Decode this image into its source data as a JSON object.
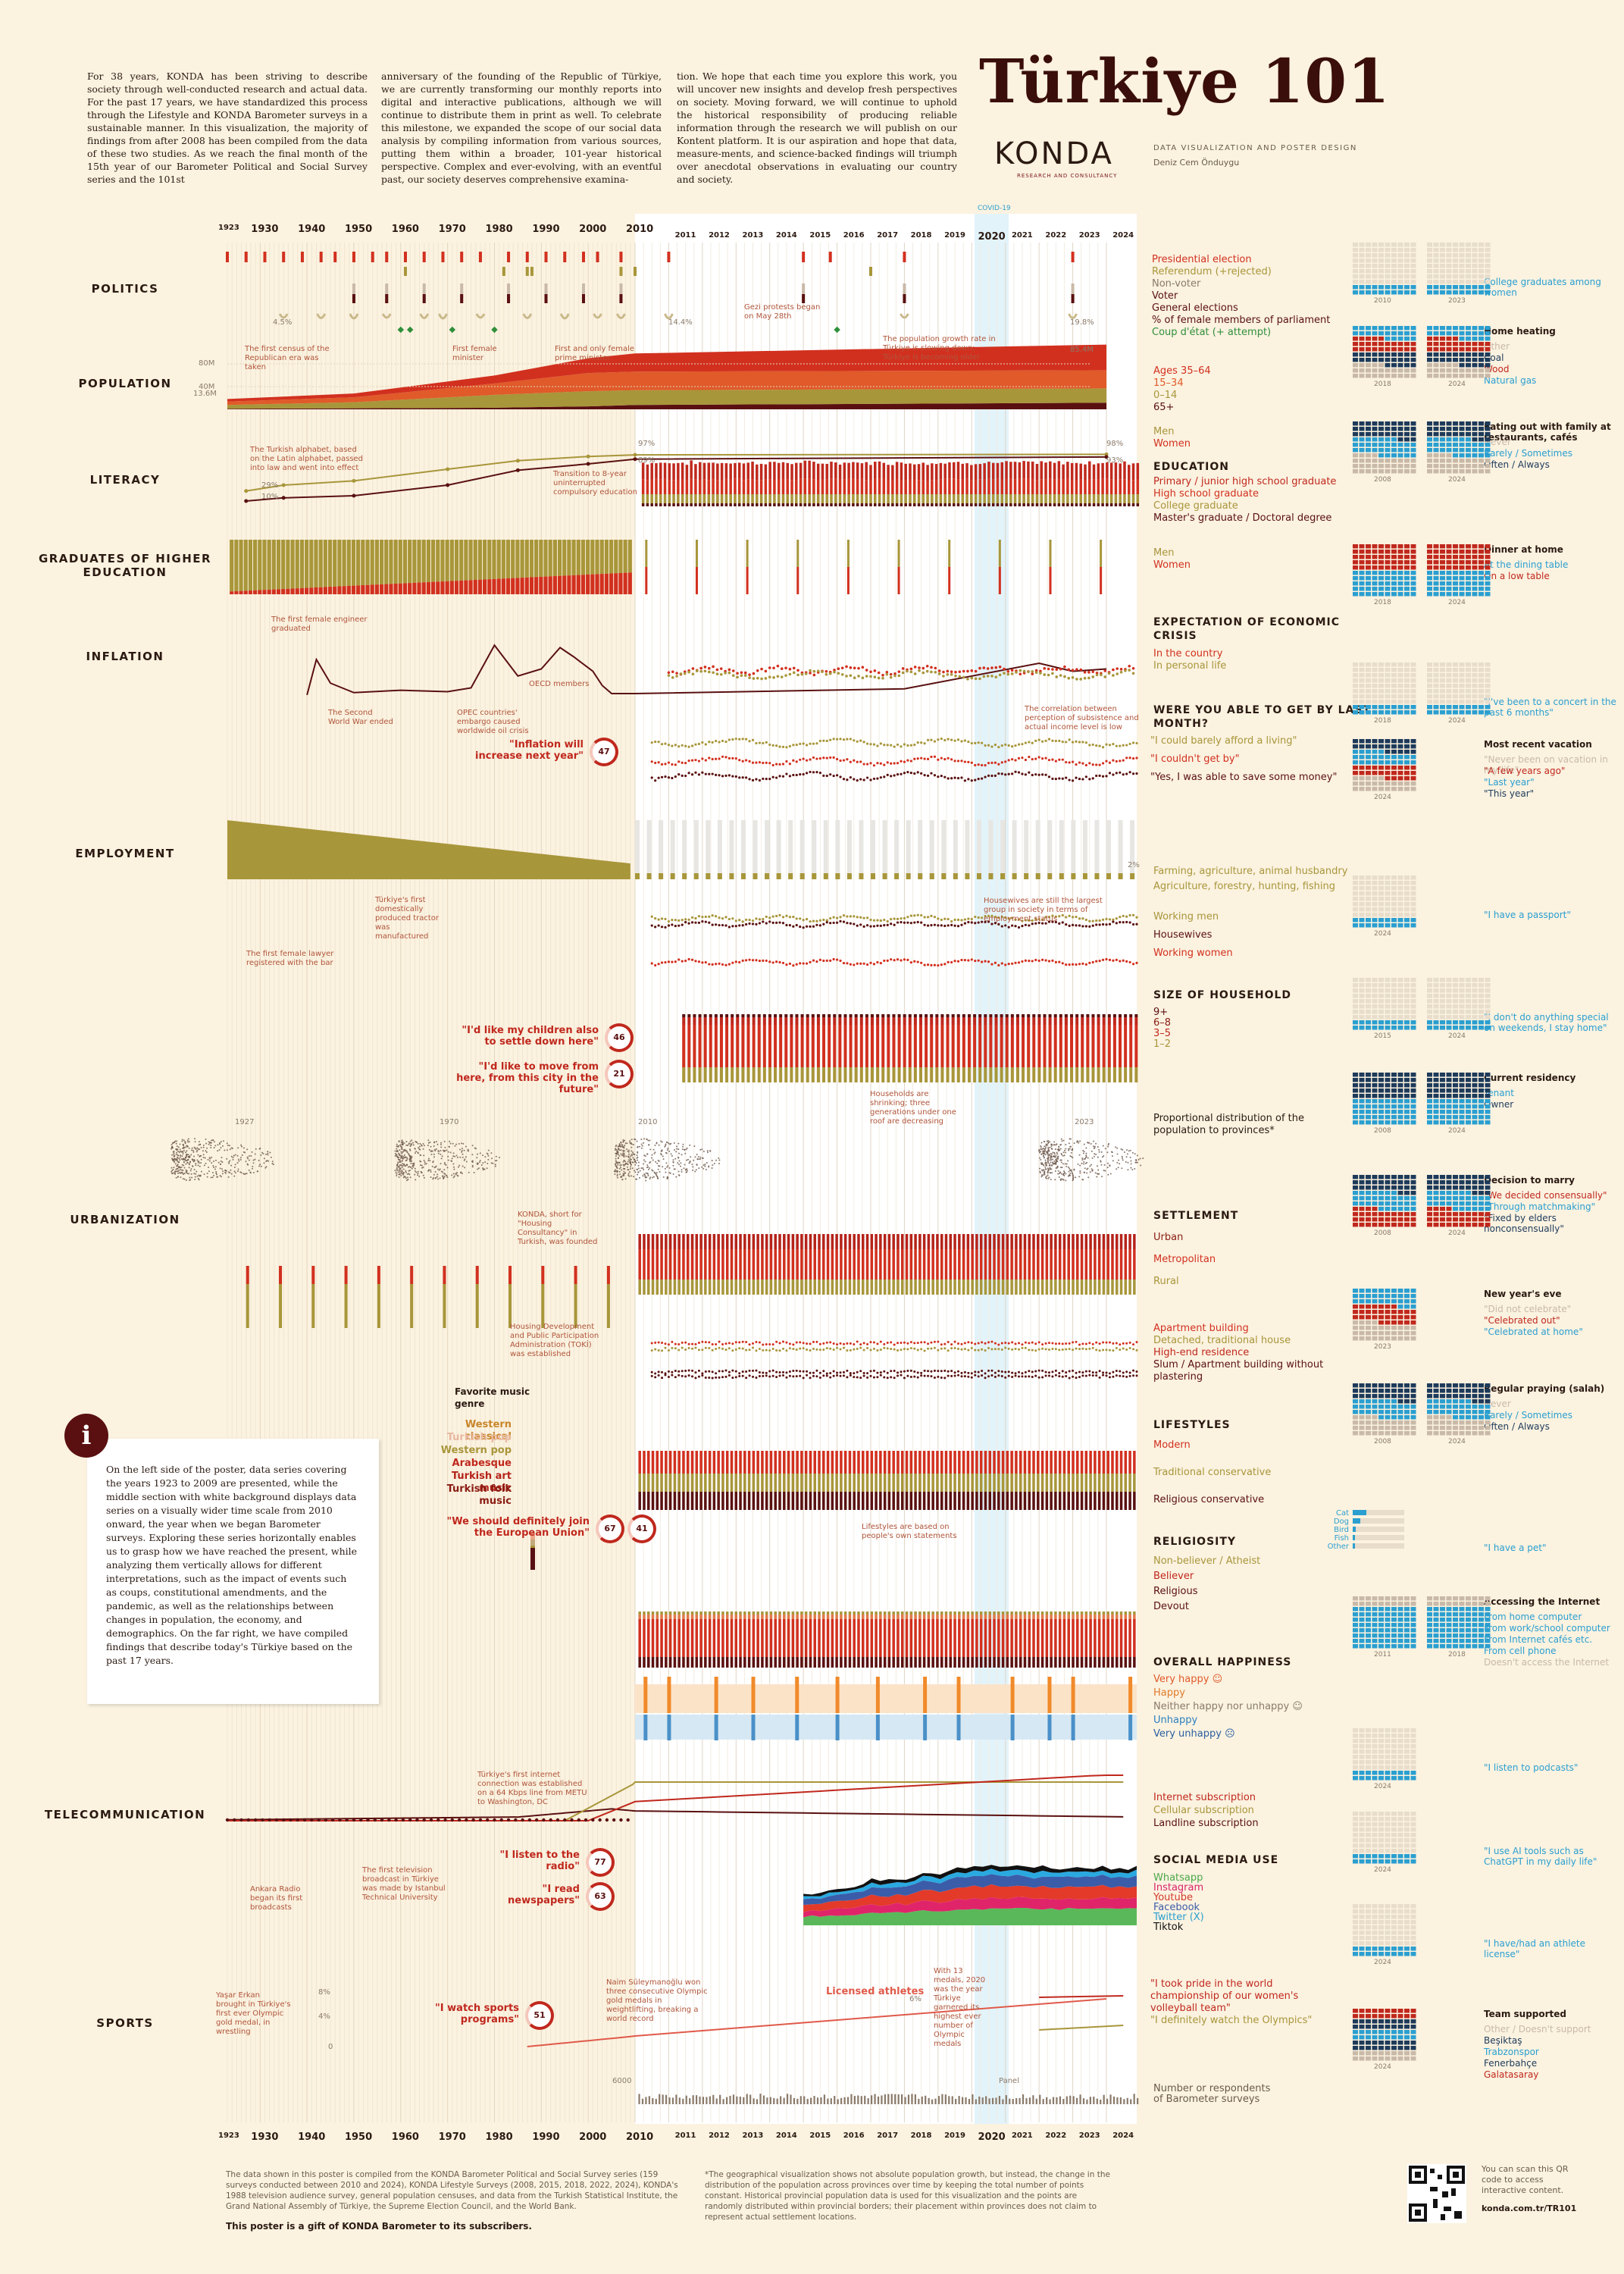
{
  "intro": {
    "col1": "For 38 years, KONDA has been striving to describe society through well-conducted research and actual data. For the past 17 years, we have standardized this process through the Lifestyle and KONDA Barometer surveys in a sustainable manner. In this visualization, the majority of findings from after 2008 has been compiled from the data of these two studies. As we reach the final month of the 15th year of our Barometer Political and Social Survey series and the 101st",
    "col2": "anniversary of the founding of the Republic of Türkiye, we are currently transforming our monthly reports into digital and interactive publications, although we will continue to distribute them in print as well. To celebrate this milestone, we expanded the scope of our social data analysis by compiling information from various sources, putting them within a broader, 101-year historical perspective. Complex and ever-evolving, with an eventful past, our society deserves comprehensive examina-",
    "col3": "tion. We hope that each time you explore this work, you will uncover new insights and develop fresh perspectives on society. Moving forward, we will continue to uphold the historical responsibility of producing reliable information through the research we will publish on our Kontent platform. It is our aspiration and hope that data, measure-ments, and science-backed findings will triumph over anecdotal observations in evaluating our country and society."
  },
  "header": {
    "title": "Türkiye 101",
    "brand": "KONDA",
    "brand_sub": "RESEARCH AND CONSULTANCY",
    "credit_line": "DATA VISUALIZATION AND POSTER DESIGN",
    "designer": "Deniz Cem Önduygu"
  },
  "colors": {
    "bg": "#fbf2e0",
    "red": "#d2301f",
    "orange": "#e05a2a",
    "olive": "#a8963a",
    "maroon": "#5a1010",
    "blue": "#2a9fd0",
    "navy": "#1d3a5a"
  },
  "timeline": {
    "early_years": [
      "1923",
      "1930",
      "1940",
      "1950",
      "1960",
      "1970",
      "1980",
      "1990",
      "2000",
      "2010"
    ],
    "recent_years": [
      "2011",
      "2012",
      "2013",
      "2014",
      "2015",
      "2016",
      "2017",
      "2018",
      "2019",
      "2020",
      "2021",
      "2022",
      "2023",
      "2024"
    ],
    "covid_label": "COVID-19"
  },
  "sections": [
    {
      "key": "politics",
      "label": "POLITICS"
    },
    {
      "key": "population",
      "label": "POPULATION"
    },
    {
      "key": "literacy",
      "label": "LITERACY"
    },
    {
      "key": "graduates",
      "label": "GRADUATES OF HIGHER EDUCATION"
    },
    {
      "key": "inflation",
      "label": "INFLATION"
    },
    {
      "key": "employment",
      "label": "EMPLOYMENT"
    },
    {
      "key": "urbanization",
      "label": "URBANIZATION"
    },
    {
      "key": "telecom",
      "label": "TELECOMMUNICATION"
    },
    {
      "key": "sports",
      "label": "SPORTS"
    }
  ],
  "legends": {
    "politics": [
      "Presidential election",
      "Referendum (+rejected)",
      "Non-voter",
      "Voter",
      "General elections",
      "% of female members of parliament",
      "Coup d'état (+ attempt)"
    ],
    "population": [
      "Ages 35–64",
      "15–34",
      "0–14",
      "65+"
    ],
    "literacy": [
      "Men",
      "Women"
    ],
    "education_h": "EDUCATION",
    "education": [
      "Primary / junior high school graduate",
      "High school graduate",
      "College graduate",
      "Master's graduate / Doctoral degree"
    ],
    "graduates": [
      "Men",
      "Women"
    ],
    "crisis_h": "EXPECTATION OF ECONOMIC CRISIS",
    "crisis": [
      "In the country",
      "In personal life"
    ],
    "getby_h": "WERE YOU ABLE TO GET BY LAST MONTH?",
    "getby": [
      "\"I could barely afford a living\"",
      "\"I couldn't get by\"",
      "\"Yes, I was able to save some money\""
    ],
    "employment": [
      "Farming, agriculture, animal husbandry",
      "Agriculture, forestry, hunting, fishing"
    ],
    "working": [
      "Working men",
      "Housewives",
      "Working women"
    ],
    "household_h": "SIZE OF HOUSEHOLD",
    "household": [
      "9+",
      "6–8",
      "3–5",
      "1–2"
    ],
    "provinces": "Proportional distribution of the population to provinces*",
    "settlement_h": "SETTLEMENT",
    "settlement": [
      "Urban",
      "Metropolitan",
      "Rural"
    ],
    "housing": [
      "Apartment building",
      "Detached, traditional house",
      "High-end residence",
      "Slum / Apartment building without plastering"
    ],
    "lifestyles_h": "LIFESTYLES",
    "lifestyles": [
      "Modern",
      "Traditional conservative",
      "Religious conservative"
    ],
    "religiosity_h": "RELIGIOSITY",
    "religiosity": [
      "Non-believer / Atheist",
      "Believer",
      "Religious",
      "Devout"
    ],
    "happiness_h": "OVERALL HAPPINESS",
    "happiness": [
      "Very happy ☺",
      "Happy",
      "Neither happy nor unhappy ☺",
      "Unhappy",
      "Very unhappy ☹"
    ],
    "telecom": [
      "Internet subscription",
      "Cellular subscription",
      "Landline subscription"
    ],
    "social_h": "SOCIAL MEDIA USE",
    "social": [
      "Whatsapp",
      "Instagram",
      "Youtube",
      "Facebook",
      "Twitter (X)",
      "Tiktok"
    ],
    "sports": [
      "\"I took pride in the world championship of our women's volleyball team\"",
      "\"I definitely watch the Olympics\""
    ],
    "respondents": [
      "Number or respondents",
      "of Barometer surveys"
    ],
    "music_h": "Favorite music genre",
    "music": [
      "Western classical",
      "Turkish pop",
      "Western pop",
      "Arabesque",
      "Turkish art music",
      "Turkish folk music"
    ]
  },
  "notes": {
    "census": "The first census of the Republican era was taken",
    "fem_min": "First female minister",
    "fem_pm": "First and only female prime minister",
    "gezi": "Gezi protests began on May 28th",
    "pop_slow": "The population growth rate in Türkiye is slowing down; Türkiye is becoming older",
    "alphabet": "The Turkish alphabet, based on the Latin alphabet, passed into law and went into effect",
    "compulsory": "Transition to 8-year uninterrupted compulsory education",
    "engineer": "The first female engineer graduated",
    "ww2": "The Second World War ended",
    "opec": "OPEC countries' embargo caused worldwide oil crisis",
    "oecd": "OECD members",
    "correlation": "The correlation between perception of subsistence and actual income level is low",
    "tractor": "Türkiye's first domestically produced tractor was manufactured",
    "lawyer": "The first female lawyer registered with the bar",
    "housewives": "Housewives are still the largest group in society in terms of employment status",
    "shrinking": "Households are shrinking; three generations under one roof are decreasing",
    "konut": "KONDA, short for \"Housing Consultancy\" in Turkish, was founded",
    "toki": "Housing Development and Public Participation Administration (TOKİ) was established",
    "lifestyle_note": "Lifestyles are based on people's own statements",
    "internet": "Türkiye's first internet connection was established on a 64 Kbps line from METU to Washington, DC",
    "radio": "Ankara Radio began its first broadcasts",
    "tv": "The first television broadcast in Türkiye was made by Istanbul Technical University",
    "yasar": "Yaşar Erkan brought in Türkiye's first ever Olympic gold medal, in wrestling",
    "naim": "Naim Süleymanoğlu won three consecutive Olympic gold medals in weightlifting, breaking a world record",
    "olympic2020": "With 13 medals, 2020 was the year Türkiye garnered its highest ever number of Olympic medals",
    "licensed": "Licensed athletes"
  },
  "quotes": [
    {
      "text": "\"Inflation will increase next year\"",
      "pct": "47"
    },
    {
      "text": "\"I'd like my children also to settle down here\"",
      "pct": "46"
    },
    {
      "text": "\"I'd like to move from here, from this city in the future\"",
      "pct": "21"
    },
    {
      "text": "\"We should definitely join the European Union\"",
      "pct": "67",
      "pct2": "41"
    },
    {
      "text": "\"I listen to the radio\"",
      "pct": "77"
    },
    {
      "text": "\"I read newspapers\"",
      "pct": "63"
    },
    {
      "text": "\"I watch sports programs\"",
      "pct": "51"
    }
  ],
  "value_labels": {
    "fem_mp": [
      "4.5%",
      "14.4%",
      "19.8%"
    ],
    "pop": [
      "13.6M",
      "85.4M",
      "80M",
      "40M",
      "0"
    ],
    "lit": [
      "29%",
      "10%",
      "97%",
      "89%",
      "98%",
      "93%"
    ],
    "emp": [
      "2%"
    ],
    "maps": [
      "1927",
      "1970",
      "2010",
      "2023"
    ],
    "sports_y": [
      "8%",
      "4%",
      "0",
      "6%"
    ],
    "respondents_n": "6000",
    "panel": "Panel"
  },
  "right_panel": [
    {
      "h": "",
      "items": [
        "College graduates among women"
      ],
      "years": [
        "2010",
        "2023"
      ]
    },
    {
      "h": "Home heating",
      "items": [
        "Other",
        "Coal",
        "Wood",
        "Natural gas"
      ],
      "years": [
        "2018",
        "2024"
      ]
    },
    {
      "h": "Eating out with family at restaurants, cafés",
      "items": [
        "Never",
        "Rarely / Sometimes",
        "Often / Always"
      ],
      "years": [
        "2008",
        "2024"
      ]
    },
    {
      "h": "Dinner at home",
      "items": [
        "At the dining table",
        "On a low table"
      ],
      "years": [
        "2018",
        "2024"
      ]
    },
    {
      "h": "",
      "items": [
        "\"I've been to a concert in the past 6 months\""
      ],
      "years": [
        "2018",
        "2024"
      ]
    },
    {
      "h": "Most recent vacation",
      "items": [
        "\"Never been on vacation in my life\"",
        "\"A few years ago\"",
        "\"Last year\"",
        "\"This year\""
      ],
      "years": [
        "2024"
      ]
    },
    {
      "h": "",
      "items": [
        "\"I have a passport\""
      ],
      "years": [
        "2024"
      ]
    },
    {
      "h": "",
      "items": [
        "\"I don't do anything special on weekends, I stay home\""
      ],
      "years": [
        "2015",
        "2024"
      ]
    },
    {
      "h": "Current residency",
      "items": [
        "Tenant",
        "Owner"
      ],
      "years": [
        "2008",
        "2024"
      ]
    },
    {
      "h": "Decision to marry",
      "items": [
        "\"We decided consensually\"",
        "\"Through matchmaking\"",
        "\"Fixed by elders nonconsensually\""
      ],
      "years": [
        "2008",
        "2024"
      ]
    },
    {
      "h": "New year's eve",
      "items": [
        "\"Did not celebrate\"",
        "\"Celebrated out\"",
        "\"Celebrated at home\""
      ],
      "years": [
        "2023"
      ]
    },
    {
      "h": "Regular praying (salah)",
      "items": [
        "Never",
        "Rarely / Sometimes",
        "Often / Always"
      ],
      "years": [
        "2008",
        "2024"
      ]
    },
    {
      "h": "",
      "items": [
        "\"I have a pet\""
      ],
      "pets": [
        "Cat",
        "Dog",
        "Bird",
        "Fish",
        "Other"
      ]
    },
    {
      "h": "Accessing the Internet",
      "items": [
        "From home computer",
        "From work/school computer",
        "From Internet cafés etc.",
        "From cell phone",
        "Doesn't access the Internet"
      ],
      "years": [
        "2011",
        "2018"
      ]
    },
    {
      "h": "",
      "items": [
        "\"I listen to podcasts\""
      ],
      "years": [
        "2024"
      ]
    },
    {
      "h": "",
      "items": [
        "\"I use AI tools such as ChatGPT in my daily life\""
      ],
      "years": [
        "2024"
      ]
    },
    {
      "h": "",
      "items": [
        "\"I have/had an athlete license\""
      ],
      "years": [
        "2024"
      ]
    },
    {
      "h": "Team supported",
      "items": [
        "Other / Doesn't support",
        "Beşiktaş",
        "Trabzonspor",
        "Fenerbahçe",
        "Galatasaray"
      ],
      "years": [
        "2024"
      ]
    }
  ],
  "info": "On the left side of the poster, data series covering the years 1923 to 2009 are presented, while the middle section with white background displays data series on a visually wider time scale from 2010 onward, the year when we began Barometer surveys. Exploring these series horizontally enables us to grasp how we have reached the present, while analyzing them vertically allows for different interpretations, such as the impact of events such as coups, constitutional amendments, and the pandemic, as well as the relationships between changes in population, the economy, and demographics. On the far right, we have compiled findings that describe today's Türkiye based on the past 17 years.",
  "footer": {
    "sources": "The data shown in this poster is compiled from the KONDA Barometer Political and Social Survey series (159 surveys conducted between 2010 and 2024), KONDA Lifestyle Surveys (2008, 2015, 2018, 2022, 2024), KONDA's 1988 television audience survey, general population censuses, and data from the Turkish Statistical Institute, the Grand National Assembly of Türkiye, the Supreme Election Council, and the World Bank.",
    "gift": "This poster is a gift of KONDA Barometer to its subscribers.",
    "geo": "*The geographical visualization shows not absolute population growth, but instead, the change in the distribution of the population across provinces over time by keeping the total number of points constant. Historical provincial population data is used for this visualization and the points are randomly distributed within provincial borders; their placement within provinces does not claim to represent actual settlement locations.",
    "qr": "You can scan this QR code to access interactive content.",
    "url": "konda.com.tr/TR101"
  },
  "chart_data": [
    {
      "type": "area",
      "key": "population",
      "x": [
        1923,
        1950,
        1980,
        2000,
        2010,
        2024
      ],
      "series": [
        {
          "name": "65+",
          "values": [
            0.8,
            1.4,
            2.1,
            3.9,
            5.7,
            8.7
          ]
        },
        {
          "name": "0–14",
          "values": [
            5.0,
            8.0,
            17.0,
            20.0,
            19.5,
            18.9
          ]
        },
        {
          "name": "15–34",
          "values": [
            4.5,
            6.5,
            15.0,
            24.0,
            24.5,
            24.0
          ]
        },
        {
          "name": "Ages 35–64",
          "values": [
            3.3,
            5.0,
            10.5,
            19.5,
            24.0,
            33.8
          ]
        }
      ],
      "ylim": [
        0,
        80
      ]
    },
    {
      "type": "line",
      "key": "literacy",
      "x": [
        1927,
        1935,
        1950,
        1970,
        1985,
        2000,
        2010,
        2024
      ],
      "series": [
        {
          "name": "Men",
          "values": [
            29,
            40,
            48,
            70,
            86,
            94,
            97,
            98
          ]
        },
        {
          "name": "Women",
          "values": [
            10,
            16,
            20,
            40,
            68,
            80,
            89,
            93
          ]
        }
      ],
      "ylim": [
        0,
        100
      ]
    },
    {
      "type": "line",
      "key": "inflation",
      "x": [
        1940,
        1942,
        1945,
        1950,
        1960,
        1970,
        1975,
        1980,
        1985,
        1990,
        1994,
        1997,
        2001,
        2003,
        2005,
        2010,
        2018,
        2022,
        2023,
        2024
      ],
      "values": [
        5,
        80,
        30,
        10,
        15,
        12,
        20,
        110,
        45,
        60,
        105,
        85,
        55,
        25,
        8,
        8,
        18,
        72,
        55,
        60
      ],
      "ylim": [
        0,
        120
      ]
    }
  ]
}
